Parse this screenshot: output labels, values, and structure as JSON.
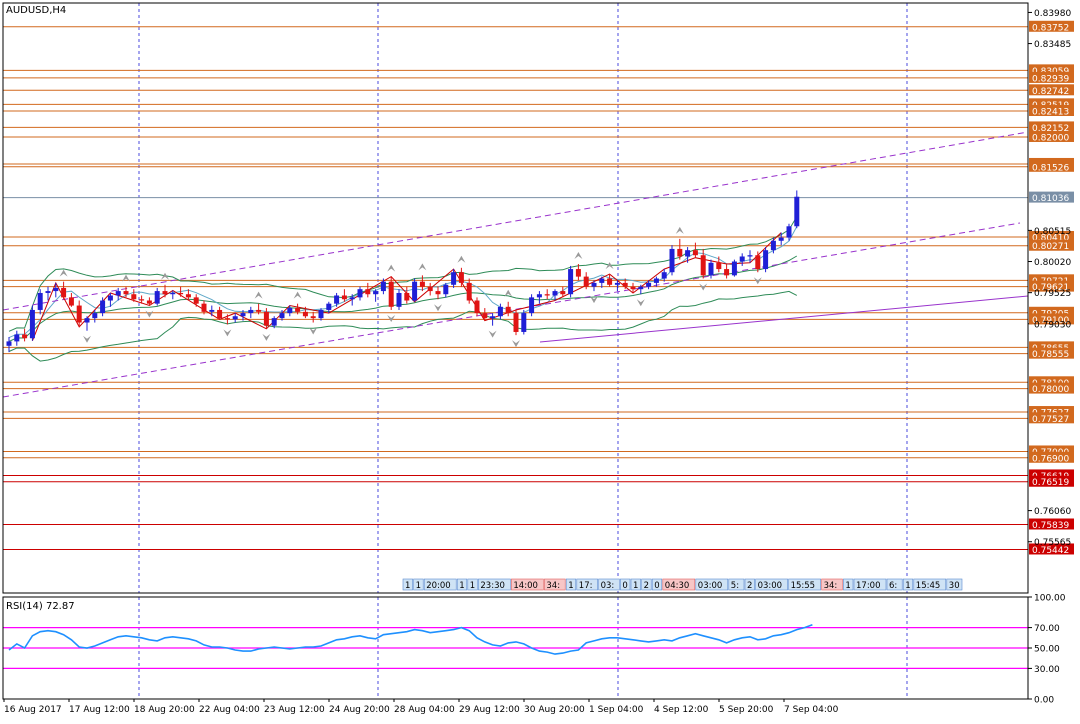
{
  "chart_data": [
    {
      "type": "candlestick",
      "title": "AUDUSD,H4",
      "ylim": [
        0.7475,
        0.8413
      ],
      "price_axis_ticks": [
        "0.83980",
        "0.83485",
        "0.80515",
        "0.80020",
        "0.79525",
        "0.79030",
        "0.76060",
        "0.75565"
      ],
      "horizontal_levels": [
        {
          "label": "0.83752",
          "color": "#d2691e"
        },
        {
          "label": "0.83059",
          "color": "#d2691e"
        },
        {
          "label": "0.82939",
          "color": "#d2691e"
        },
        {
          "label": "0.82742",
          "color": "#d2691e"
        },
        {
          "label": "0.82519",
          "color": "#d2691e"
        },
        {
          "label": "0.82413",
          "color": "#d2691e"
        },
        {
          "label": "0.82152",
          "color": "#d2691e"
        },
        {
          "label": "0.82000",
          "color": "#d2691e"
        },
        {
          "label": "0.81571",
          "color": "#d2691e"
        },
        {
          "label": "0.81526",
          "color": "#d2691e"
        },
        {
          "label": "0.81036",
          "color": "#7a8fa6"
        },
        {
          "label": "0.80410",
          "color": "#d2691e"
        },
        {
          "label": "0.80271",
          "color": "#d2691e"
        },
        {
          "label": "0.79721",
          "color": "#d2691e"
        },
        {
          "label": "0.79621",
          "color": "#d2691e"
        },
        {
          "label": "0.79205",
          "color": "#d2691e"
        },
        {
          "label": "0.79100",
          "color": "#d2691e"
        },
        {
          "label": "0.78655",
          "color": "#d2691e"
        },
        {
          "label": "0.78555",
          "color": "#d2691e"
        },
        {
          "label": "0.78100",
          "color": "#d2691e"
        },
        {
          "label": "0.78000",
          "color": "#d2691e"
        },
        {
          "label": "0.77627",
          "color": "#d2691e"
        },
        {
          "label": "0.77527",
          "color": "#d2691e"
        },
        {
          "label": "0.77000",
          "color": "#d2691e"
        },
        {
          "label": "0.76900",
          "color": "#d2691e"
        },
        {
          "label": "0.76619",
          "color": "#cc0000"
        },
        {
          "label": "0.76519",
          "color": "#cc0000"
        },
        {
          "label": "0.75839",
          "color": "#cc0000"
        },
        {
          "label": "0.75442",
          "color": "#cc0000"
        }
      ],
      "time_axis_labels": [
        "16 Aug 2017",
        "17 Aug 12:00",
        "18 Aug 20:00",
        "22 Aug 04:00",
        "23 Aug 12:00",
        "24 Aug 20:00",
        "28 Aug 04:00",
        "29 Aug 12:00",
        "30 Aug 20:00",
        "1 Sep 04:00",
        "4 Sep 12:00",
        "5 Sep 20:00",
        "7 Sep 04:00"
      ],
      "candles": [
        [
          0.7868,
          0.7882,
          0.7858,
          0.7875
        ],
        [
          0.7875,
          0.7892,
          0.7868,
          0.7886
        ],
        [
          0.7886,
          0.7895,
          0.7875,
          0.788
        ],
        [
          0.788,
          0.7932,
          0.7876,
          0.7925
        ],
        [
          0.7925,
          0.7958,
          0.7918,
          0.7952
        ],
        [
          0.7952,
          0.7962,
          0.794,
          0.7955
        ],
        [
          0.7955,
          0.7968,
          0.7945,
          0.796
        ],
        [
          0.796,
          0.797,
          0.7942,
          0.7945
        ],
        [
          0.7945,
          0.7952,
          0.793,
          0.7932
        ],
        [
          0.7932,
          0.794,
          0.7898,
          0.7905
        ],
        [
          0.7905,
          0.7915,
          0.7892,
          0.7912
        ],
        [
          0.7912,
          0.7925,
          0.7905,
          0.792
        ],
        [
          0.792,
          0.7945,
          0.7915,
          0.794
        ],
        [
          0.794,
          0.7952,
          0.793,
          0.7948
        ],
        [
          0.7948,
          0.796,
          0.794,
          0.7955
        ],
        [
          0.7955,
          0.7962,
          0.7945,
          0.795
        ],
        [
          0.795,
          0.7958,
          0.7938,
          0.7942
        ],
        [
          0.7942,
          0.7948,
          0.7935,
          0.794
        ],
        [
          0.794,
          0.7945,
          0.7932,
          0.7935
        ],
        [
          0.7935,
          0.796,
          0.7932,
          0.7955
        ],
        [
          0.7955,
          0.7965,
          0.7945,
          0.795
        ],
        [
          0.795,
          0.7956,
          0.7942,
          0.7952
        ],
        [
          0.7952,
          0.7962,
          0.7946,
          0.795
        ],
        [
          0.795,
          0.7958,
          0.794,
          0.7945
        ],
        [
          0.7945,
          0.795,
          0.793,
          0.7935
        ],
        [
          0.7935,
          0.794,
          0.7918,
          0.7922
        ],
        [
          0.7922,
          0.7932,
          0.7915,
          0.7925
        ],
        [
          0.7925,
          0.793,
          0.791,
          0.7912
        ],
        [
          0.7912,
          0.7918,
          0.7902,
          0.791
        ],
        [
          0.791,
          0.792,
          0.7905,
          0.7915
        ],
        [
          0.7915,
          0.7925,
          0.7908,
          0.792
        ],
        [
          0.792,
          0.793,
          0.7912,
          0.7925
        ],
        [
          0.7925,
          0.7935,
          0.7918,
          0.7922
        ],
        [
          0.7922,
          0.7928,
          0.7895,
          0.79
        ],
        [
          0.79,
          0.7915,
          0.7896,
          0.7912
        ],
        [
          0.7912,
          0.7925,
          0.7908,
          0.792
        ],
        [
          0.792,
          0.7932,
          0.7915,
          0.7928
        ],
        [
          0.7928,
          0.7935,
          0.7918,
          0.7922
        ],
        [
          0.7922,
          0.793,
          0.7912,
          0.7915
        ],
        [
          0.7915,
          0.7922,
          0.7905,
          0.7912
        ],
        [
          0.7912,
          0.7928,
          0.7908,
          0.7925
        ],
        [
          0.7925,
          0.7938,
          0.792,
          0.7935
        ],
        [
          0.7935,
          0.7952,
          0.793,
          0.7948
        ],
        [
          0.7948,
          0.7958,
          0.7938,
          0.7942
        ],
        [
          0.7942,
          0.795,
          0.7932,
          0.7945
        ],
        [
          0.7945,
          0.7962,
          0.794,
          0.7958
        ],
        [
          0.7958,
          0.7968,
          0.7945,
          0.795
        ],
        [
          0.795,
          0.7958,
          0.7938,
          0.7955
        ],
        [
          0.7955,
          0.7975,
          0.795,
          0.797
        ],
        [
          0.797,
          0.7978,
          0.7925,
          0.793
        ],
        [
          0.793,
          0.7958,
          0.7925,
          0.7952
        ],
        [
          0.7952,
          0.7962,
          0.7935,
          0.794
        ],
        [
          0.794,
          0.7975,
          0.7938,
          0.797
        ],
        [
          0.797,
          0.798,
          0.7955,
          0.7962
        ],
        [
          0.7962,
          0.7968,
          0.7948,
          0.7955
        ],
        [
          0.7955,
          0.7962,
          0.7942,
          0.795
        ],
        [
          0.795,
          0.7968,
          0.7945,
          0.7965
        ],
        [
          0.7965,
          0.799,
          0.796,
          0.7985
        ],
        [
          0.7985,
          0.7992,
          0.7962,
          0.7968
        ],
        [
          0.7968,
          0.7975,
          0.7935,
          0.794
        ],
        [
          0.794,
          0.7945,
          0.7915,
          0.792
        ],
        [
          0.792,
          0.7928,
          0.7908,
          0.7912
        ],
        [
          0.7912,
          0.792,
          0.79,
          0.7915
        ],
        [
          0.7915,
          0.7935,
          0.791,
          0.793
        ],
        [
          0.793,
          0.7938,
          0.7915,
          0.792
        ],
        [
          0.792,
          0.7925,
          0.7885,
          0.789
        ],
        [
          0.789,
          0.7925,
          0.7886,
          0.792
        ],
        [
          0.792,
          0.795,
          0.7915,
          0.7945
        ],
        [
          0.7945,
          0.7955,
          0.7935,
          0.795
        ],
        [
          0.795,
          0.7958,
          0.7942,
          0.7948
        ],
        [
          0.7948,
          0.7958,
          0.794,
          0.7955
        ],
        [
          0.7955,
          0.7962,
          0.7945,
          0.795
        ],
        [
          0.795,
          0.7995,
          0.7945,
          0.799
        ],
        [
          0.799,
          0.7998,
          0.7972,
          0.7978
        ],
        [
          0.7978,
          0.7985,
          0.7958,
          0.7962
        ],
        [
          0.7962,
          0.7972,
          0.7955,
          0.7968
        ],
        [
          0.7968,
          0.7978,
          0.796,
          0.7975
        ],
        [
          0.7975,
          0.7982,
          0.7962,
          0.7965
        ],
        [
          0.7965,
          0.7972,
          0.7955,
          0.7968
        ],
        [
          0.7968,
          0.7975,
          0.7958,
          0.7962
        ],
        [
          0.7962,
          0.7968,
          0.7952,
          0.7958
        ],
        [
          0.7958,
          0.7965,
          0.795,
          0.7962
        ],
        [
          0.7962,
          0.7972,
          0.7958,
          0.7968
        ],
        [
          0.7968,
          0.7978,
          0.7962,
          0.7975
        ],
        [
          0.7975,
          0.799,
          0.797,
          0.7985
        ],
        [
          0.7985,
          0.8028,
          0.798,
          0.8022
        ],
        [
          0.8022,
          0.8038,
          0.8005,
          0.801
        ],
        [
          0.801,
          0.8025,
          0.8,
          0.802
        ],
        [
          0.802,
          0.8032,
          0.8008,
          0.8012
        ],
        [
          0.8012,
          0.8022,
          0.7975,
          0.798
        ],
        [
          0.798,
          0.8005,
          0.7975,
          0.8
        ],
        [
          0.8,
          0.801,
          0.7985,
          0.799
        ],
        [
          0.799,
          0.7998,
          0.7975,
          0.798
        ],
        [
          0.798,
          0.8005,
          0.7978,
          0.8002
        ],
        [
          0.8002,
          0.8015,
          0.7995,
          0.801
        ],
        [
          0.801,
          0.802,
          0.8,
          0.8012
        ],
        [
          0.8012,
          0.8018,
          0.7985,
          0.799
        ],
        [
          0.799,
          0.8025,
          0.7985,
          0.802
        ],
        [
          0.802,
          0.804,
          0.8015,
          0.8035
        ],
        [
          0.8035,
          0.8048,
          0.8028,
          0.804
        ],
        [
          0.804,
          0.8062,
          0.8035,
          0.8058
        ],
        [
          0.8058,
          0.8115,
          0.8055,
          0.8105
        ]
      ],
      "indicators": [
        {
          "name": "Bollinger Bands",
          "color": "#2e8b57"
        },
        {
          "name": "Envelopes",
          "color": "#5fa8c8"
        }
      ],
      "fractal_markers": "grey arrows above swing highs and below swing lows",
      "zigzag": {
        "color": "#cc0000"
      },
      "trend_lines": [
        {
          "style": "dashed",
          "color": "#9933cc",
          "label": "upper channel"
        },
        {
          "style": "dashed",
          "color": "#9933cc",
          "label": "lower channel"
        }
      ],
      "session_tags": [
        "1",
        "1",
        "20:00",
        "1",
        "1",
        "23:30",
        "14:00",
        "34:",
        "1",
        "17:",
        "03:",
        "0",
        "1",
        "2",
        "0",
        "04:30",
        "03:00",
        "5:",
        "2",
        "03:00",
        "15:55",
        "34:",
        "1",
        "17:00",
        "6:",
        "1",
        "15:45",
        "30"
      ]
    },
    {
      "type": "line",
      "title": "RSI(14) 72.87",
      "ylim": [
        0,
        100
      ],
      "tick_labels": [
        "100.00",
        "70.00",
        "50.00",
        "30.00",
        "0.00"
      ],
      "levels": [
        {
          "value": 70,
          "color": "#ff00ff"
        },
        {
          "value": 50,
          "color": "#ff00ff"
        },
        {
          "value": 30,
          "color": "#ff00ff"
        }
      ],
      "series": [
        {
          "color": "#1e90ff",
          "values": [
            48,
            54,
            50,
            62,
            66,
            67,
            66,
            63,
            58,
            51,
            50,
            52,
            55,
            58,
            61,
            62,
            61,
            60,
            58,
            57,
            60,
            61,
            60,
            59,
            57,
            53,
            51,
            51,
            50,
            48,
            47,
            47,
            49,
            50,
            51,
            50,
            49,
            50,
            51,
            51,
            52,
            55,
            58,
            59,
            61,
            62,
            60,
            59,
            63,
            64,
            65,
            66,
            68,
            67,
            65,
            66,
            67,
            68,
            70,
            67,
            60,
            56,
            53,
            52,
            55,
            56,
            54,
            50,
            47,
            46,
            44,
            45,
            47,
            48,
            55,
            57,
            59,
            60,
            60,
            59,
            58,
            57,
            56,
            57,
            58,
            57,
            60,
            62,
            64,
            62,
            60,
            58,
            55,
            58,
            60,
            61,
            58,
            59,
            62,
            63,
            65,
            68,
            70,
            72.87
          ]
        }
      ]
    }
  ]
}
